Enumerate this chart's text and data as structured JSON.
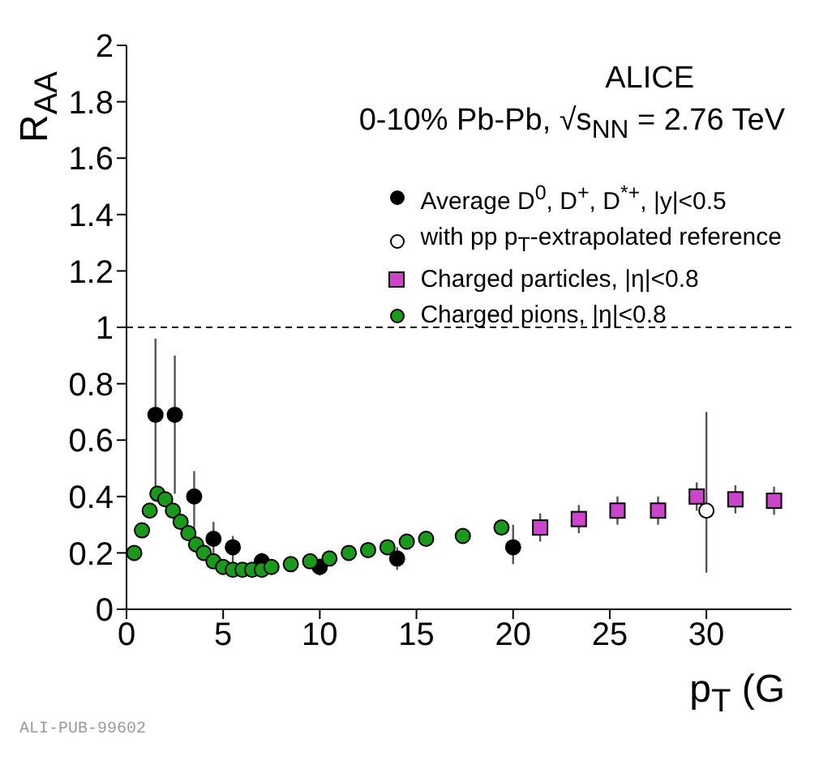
{
  "chart_data": {
    "type": "scatter",
    "title": "ALICE",
    "subtitle": "0-10% Pb-Pb, √s$_{NN}$ = 2.76 TeV",
    "xlabel": "p$_{T}$ (G",
    "ylabel": "R$_{AA}$",
    "xlim": [
      0,
      34.4
    ],
    "xticks": [
      0,
      5,
      10,
      15,
      20,
      25,
      30
    ],
    "ylim": [
      0,
      2
    ],
    "yticks": [
      0,
      0.2,
      0.4,
      0.6,
      0.8,
      1,
      1.2,
      1.4,
      1.6,
      1.8,
      2
    ],
    "grid": false,
    "legend": "top right",
    "ref_lines": [
      {
        "axis": "y",
        "value": 1,
        "line_style": "dashed",
        "color": "#000000"
      }
    ],
    "annotations": [
      "ALI-PUB-99602"
    ],
    "series": [
      {
        "name": "Average D$^{0}$, D$^{+}$, D$^{*+}$, |y|<0.5",
        "color": "#000000",
        "marker": "circle",
        "x": [
          1.5,
          2.5,
          3.5,
          4.5,
          5.5,
          7,
          10,
          14,
          20
        ],
        "values": [
          0.69,
          0.69,
          0.4,
          0.25,
          0.22,
          0.17,
          0.15,
          0.18,
          0.22
        ],
        "errors": [
          [
            0.41,
            0.96
          ],
          [
            0.41,
            0.9
          ],
          [
            0.28,
            0.49
          ],
          [
            0.18,
            0.31
          ],
          [
            0.16,
            0.26
          ],
          [
            0.13,
            0.2
          ],
          [
            0.12,
            0.18
          ],
          [
            0.14,
            0.22
          ],
          [
            0.16,
            0.3
          ]
        ]
      },
      {
        "name": "with pp p$_{T}$-extrapolated reference",
        "color": "#ffffff",
        "marker": "circle",
        "x": [
          30
        ],
        "values": [
          0.35
        ],
        "errors": [
          [
            0.13,
            0.7
          ]
        ]
      },
      {
        "name": "Charged particles, |η|<0.8",
        "color": "#cc44cc",
        "marker": "square",
        "x": [
          21.4,
          23.4,
          25.4,
          27.5,
          29.5,
          31.5,
          33.5
        ],
        "values": [
          0.29,
          0.32,
          0.35,
          0.35,
          0.4,
          0.39,
          0.385
        ],
        "errors": [
          0.05,
          0.05,
          0.05,
          0.05,
          0.05,
          0.05,
          0.05
        ]
      },
      {
        "name": "Charged pions, |η|<0.8",
        "color": "#1a9a1a",
        "marker": "circle",
        "x": [
          0.4,
          0.8,
          1.2,
          1.6,
          2.0,
          2.4,
          2.8,
          3.2,
          3.6,
          4.0,
          4.5,
          5,
          5.5,
          6,
          6.5,
          7,
          7.5,
          8.5,
          9.5,
          10.5,
          11.5,
          12.5,
          13.5,
          14.5,
          15.5,
          17.4,
          19.4
        ],
        "values": [
          0.2,
          0.28,
          0.35,
          0.41,
          0.39,
          0.35,
          0.31,
          0.27,
          0.23,
          0.2,
          0.17,
          0.15,
          0.14,
          0.14,
          0.14,
          0.14,
          0.15,
          0.16,
          0.17,
          0.18,
          0.2,
          0.21,
          0.22,
          0.24,
          0.25,
          0.26,
          0.29
        ]
      }
    ]
  }
}
